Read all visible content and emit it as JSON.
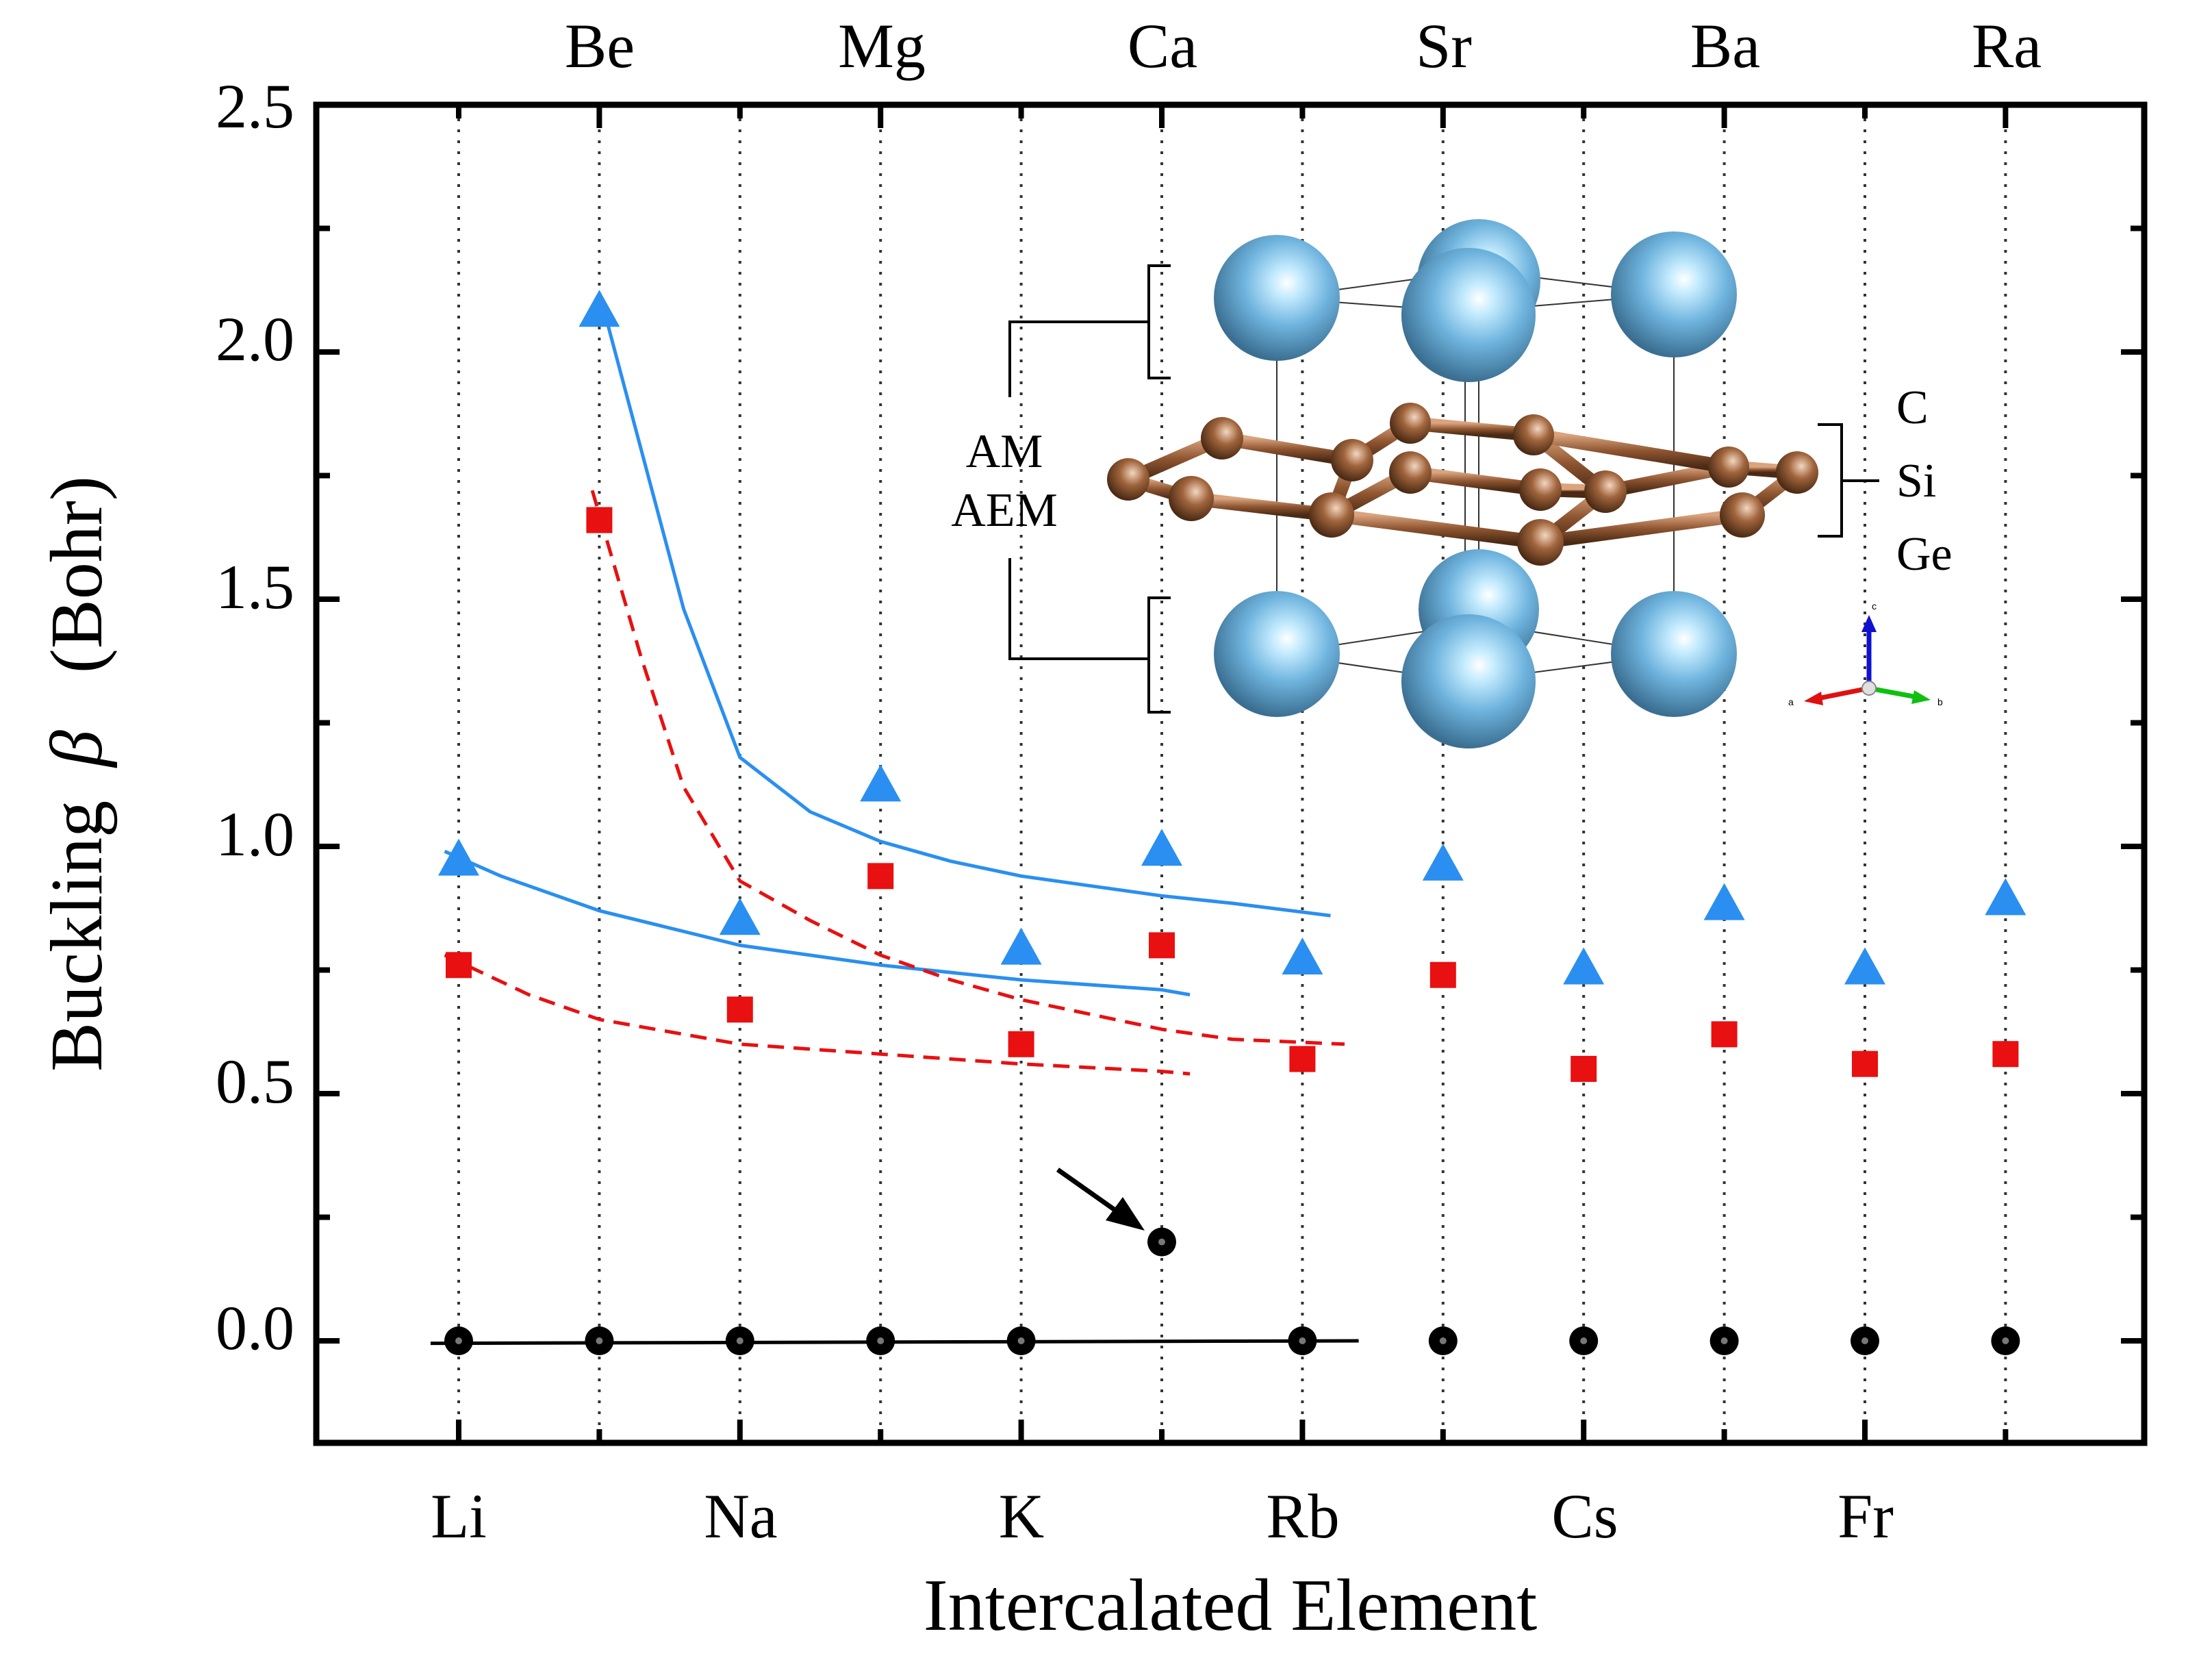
{
  "chart_data": {
    "type": "scatter",
    "title": "",
    "xlabel": "Intercalated Element",
    "ylabel_prefix": "Buckling",
    "ylabel_symbol": "β",
    "ylabel_unit": "(Bohr)",
    "ylim": [
      -0.2,
      2.5
    ],
    "yticks": [
      0.0,
      0.5,
      1.0,
      1.5,
      2.0,
      2.5
    ],
    "yticklabels": [
      "0.0",
      "0.5",
      "1.0",
      "1.5",
      "2.0",
      "2.5"
    ],
    "grid": "dotted vertical lines at each element",
    "categories": [
      "Li",
      "Be",
      "Na",
      "Mg",
      "K",
      "Ca",
      "Rb",
      "Sr",
      "Cs",
      "Ba",
      "Fr",
      "Ra"
    ],
    "bottom_axis_labels": [
      "Li",
      "Na",
      "K",
      "Rb",
      "Cs",
      "Fr"
    ],
    "top_axis_labels": [
      "Be",
      "Mg",
      "Ca",
      "Sr",
      "Ba",
      "Ra"
    ],
    "series": [
      {
        "name": "Ge",
        "marker": "triangle",
        "color": "#2a8ff0",
        "x": [
          "Li",
          "Be",
          "Na",
          "Mg",
          "K",
          "Ca",
          "Rb",
          "Sr",
          "Cs",
          "Ba",
          "Fr",
          "Ra"
        ],
        "values": [
          0.97,
          2.08,
          0.85,
          1.12,
          0.79,
          0.99,
          0.77,
          0.96,
          0.75,
          0.88,
          0.75,
          0.89
        ]
      },
      {
        "name": "Si",
        "marker": "square",
        "color": "#e81010",
        "x": [
          "Li",
          "Be",
          "Na",
          "Mg",
          "K",
          "Ca",
          "Rb",
          "Sr",
          "Cs",
          "Ba",
          "Fr",
          "Ra"
        ],
        "values": [
          0.76,
          1.66,
          0.67,
          0.94,
          0.6,
          0.8,
          0.57,
          0.74,
          0.55,
          0.62,
          0.56,
          0.58
        ]
      },
      {
        "name": "C",
        "marker": "circle",
        "color": "#000000",
        "x": [
          "Li",
          "Be",
          "Na",
          "Mg",
          "K",
          "Ca",
          "Rb",
          "Sr",
          "Cs",
          "Ba",
          "Fr",
          "Ra"
        ],
        "values": [
          0.0,
          0.0,
          0.0,
          0.0,
          0.0,
          0.2,
          0.0,
          0.0,
          0.0,
          0.0,
          0.0,
          0.0
        ]
      }
    ],
    "fits": [
      {
        "series": "Ge",
        "group": "AEM",
        "style": "solid",
        "color": "#2a8ff0",
        "x": [
          1.0,
          1.3,
          1.6,
          2.0,
          2.5,
          3.0,
          3.5,
          4.0,
          4.5,
          5.0,
          5.5,
          6.2
        ],
        "y": [
          2.12,
          1.8,
          1.48,
          1.18,
          1.07,
          1.01,
          0.97,
          0.94,
          0.92,
          0.9,
          0.885,
          0.86
        ]
      },
      {
        "series": "Ge",
        "group": "AM",
        "style": "solid",
        "color": "#2a8ff0",
        "x": [
          -0.1,
          0.3,
          1.0,
          2.0,
          3.0,
          4.0,
          5.0,
          5.2
        ],
        "y": [
          0.99,
          0.94,
          0.87,
          0.8,
          0.76,
          0.73,
          0.71,
          0.7
        ]
      },
      {
        "series": "Si",
        "group": "AEM",
        "style": "dashed",
        "color": "#e81010",
        "x": [
          0.95,
          1.3,
          1.6,
          2.0,
          2.5,
          3.0,
          3.5,
          4.0,
          4.5,
          5.0,
          5.5,
          6.3
        ],
        "y": [
          1.72,
          1.38,
          1.12,
          0.93,
          0.85,
          0.78,
          0.73,
          0.69,
          0.66,
          0.63,
          0.61,
          0.6
        ]
      },
      {
        "series": "Si",
        "group": "AM",
        "style": "dashed",
        "color": "#e81010",
        "x": [
          -0.1,
          0.5,
          1.0,
          2.0,
          3.0,
          4.0,
          5.0,
          5.2
        ],
        "y": [
          0.78,
          0.7,
          0.65,
          0.6,
          0.58,
          0.56,
          0.545,
          0.54
        ]
      },
      {
        "series": "C",
        "group": "all",
        "style": "solid",
        "color": "#000000",
        "x": [
          -0.2,
          6.4
        ],
        "y": [
          -0.005,
          0.0
        ]
      }
    ],
    "annotations": [
      {
        "type": "arrow",
        "target_category": "Ca",
        "target_value": 0.2,
        "points_to": "C buckling at Ca"
      }
    ]
  },
  "inset": {
    "left_label_line1": "AM",
    "left_label_line2": "AEM",
    "right_labels": [
      "C",
      "Si",
      "Ge"
    ],
    "axis_labels": {
      "a": "a",
      "b": "b",
      "c": "c"
    },
    "atom_color_metal": "#6fb4de",
    "atom_color_layer": "#a0643c"
  }
}
